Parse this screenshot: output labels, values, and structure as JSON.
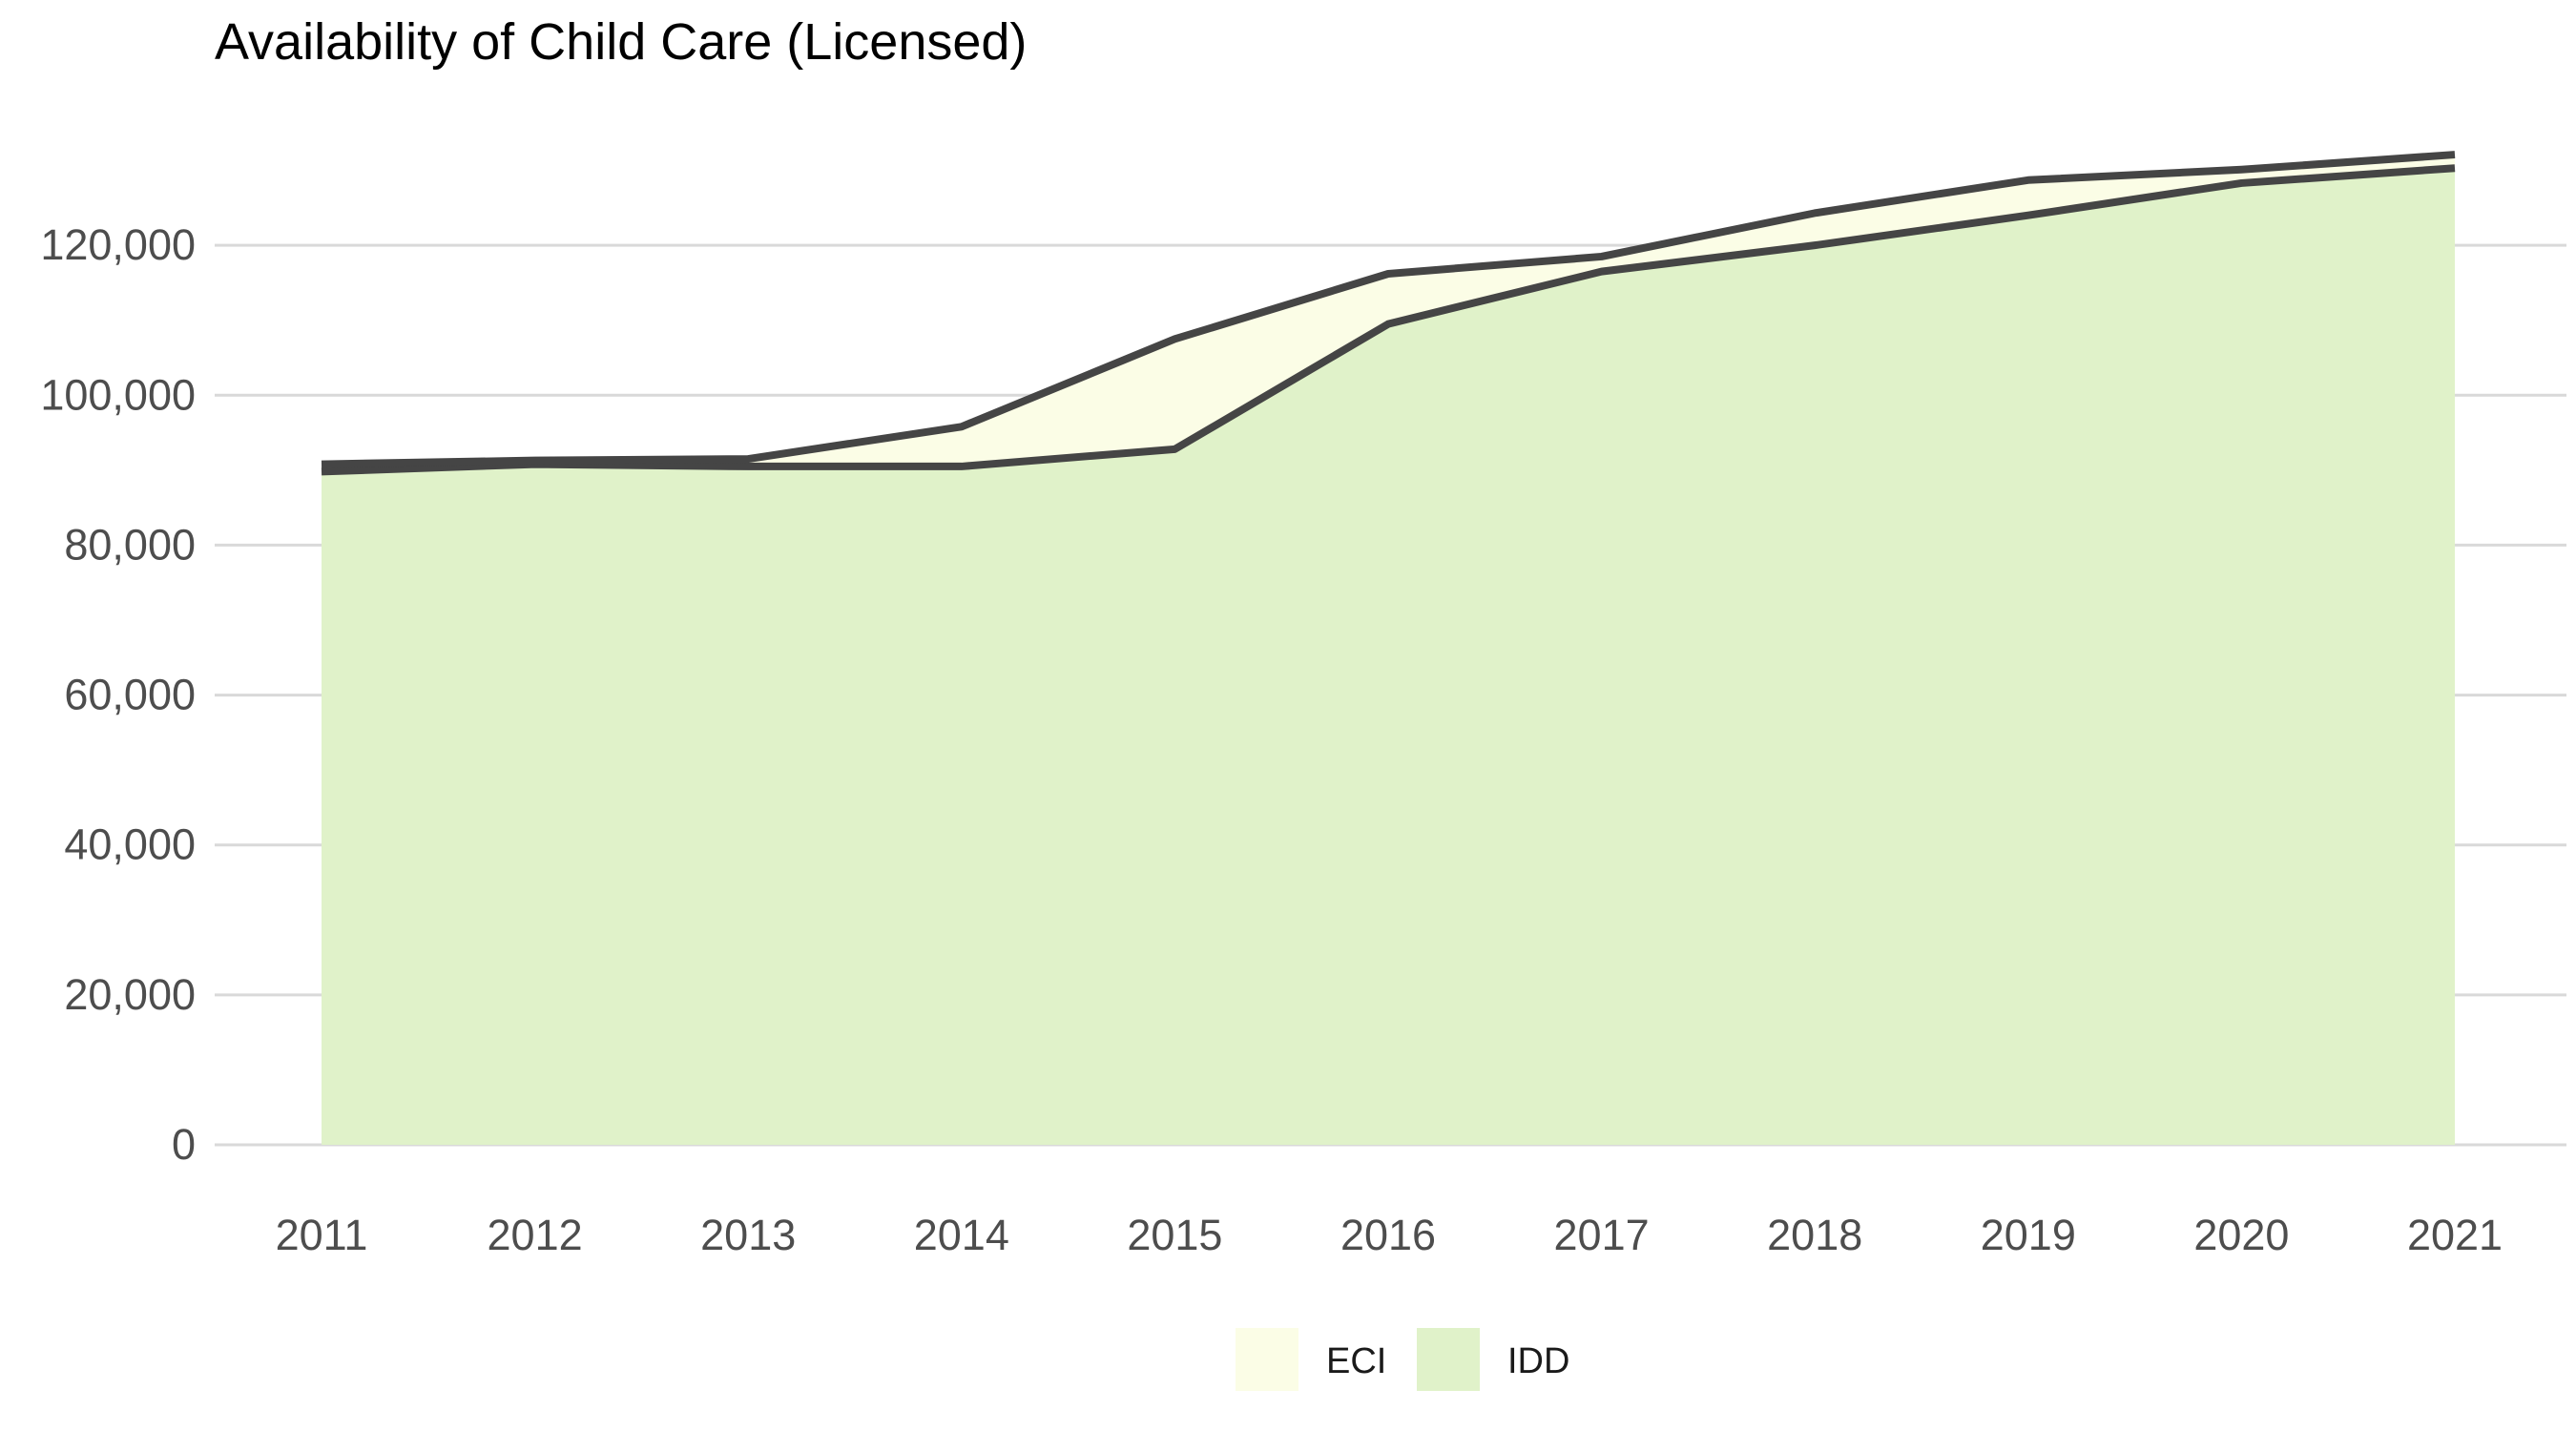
{
  "chart_data": {
    "type": "area",
    "title": "Availability of Child Care (Licensed)",
    "xlabel": "",
    "ylabel": "",
    "x": [
      2011,
      2012,
      2013,
      2014,
      2015,
      2016,
      2017,
      2018,
      2019,
      2020,
      2021
    ],
    "stacked": true,
    "ylim": [
      0,
      140000
    ],
    "yticks": [
      0,
      20000,
      40000,
      60000,
      80000,
      100000,
      120000
    ],
    "ytick_labels": [
      "0",
      "20,000",
      "40,000",
      "60,000",
      "80,000",
      "100,000",
      "120,000"
    ],
    "grid": true,
    "legend_position": "bottom",
    "series": [
      {
        "name": "IDD",
        "color": "#e0f2c9",
        "values": [
          89800,
          90800,
          90500,
          90500,
          92800,
          109500,
          116500,
          120000,
          124000,
          128300,
          130300
        ]
      },
      {
        "name": "ECI",
        "color": "#fbfde6",
        "values": [
          1000,
          500,
          1000,
          5300,
          14700,
          6700,
          2000,
          4300,
          4700,
          1800,
          1800
        ]
      }
    ],
    "line_color": "#454545"
  }
}
